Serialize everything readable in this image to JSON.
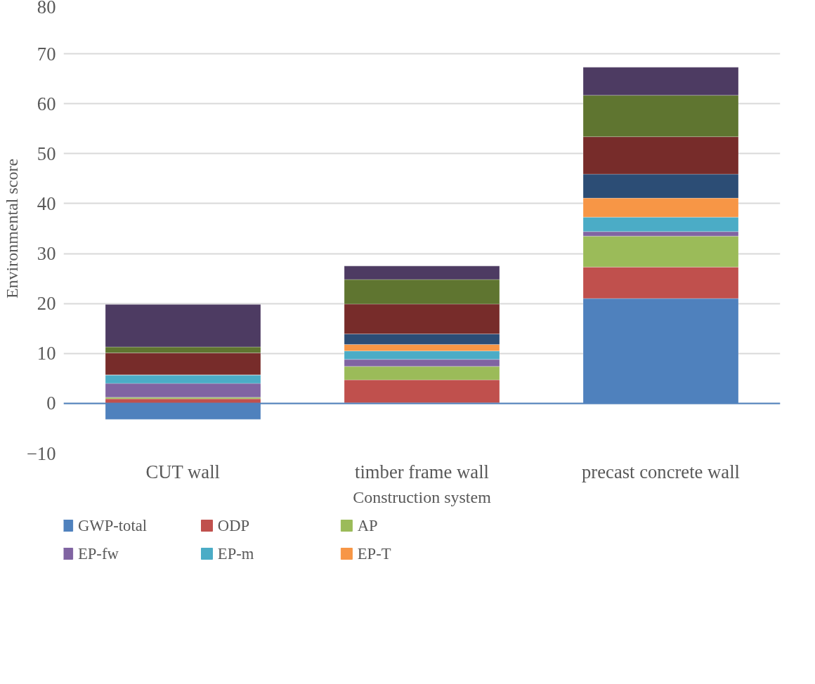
{
  "chart_data": {
    "type": "bar",
    "stacked": true,
    "xlabel": "Construction system",
    "ylabel": "Environmental score",
    "categories": [
      "CUT wall",
      "timber frame wall",
      "precast concrete wall"
    ],
    "series": [
      {
        "name": "GWP-total",
        "color": "#4f81bd",
        "values": [
          -3.2,
          0.1,
          21.0
        ]
      },
      {
        "name": "ODP",
        "color": "#c0504d",
        "values": [
          0.9,
          4.6,
          6.3
        ]
      },
      {
        "name": "AP",
        "color": "#9bbb59",
        "values": [
          0.3,
          2.7,
          6.2
        ]
      },
      {
        "name": "EP-fw",
        "color": "#8064a2",
        "values": [
          2.8,
          1.4,
          0.9
        ]
      },
      {
        "name": "EP-m",
        "color": "#4bacc6",
        "values": [
          1.7,
          1.7,
          2.9
        ]
      },
      {
        "name": "EP-T",
        "color": "#f79646",
        "values": [
          0,
          1.3,
          3.8
        ]
      },
      {
        "color": "#2c4d75",
        "values": [
          0,
          2.1,
          4.8
        ]
      },
      {
        "color": "#772c2a",
        "values": [
          4.4,
          6.0,
          7.5
        ]
      },
      {
        "color": "#5f7530",
        "values": [
          1.2,
          4.9,
          8.3
        ]
      },
      {
        "color": "#4d3b62",
        "values": [
          8.5,
          2.7,
          5.6
        ]
      }
    ],
    "ylim": [
      -10,
      80
    ],
    "yticks": [
      -10,
      0,
      10,
      20,
      30,
      40,
      50,
      60,
      70,
      80
    ],
    "grid": "y",
    "legend": "bottom",
    "ref_lines": [
      {
        "axis": "y",
        "value": 0,
        "color": "#4f81bd"
      }
    ]
  }
}
